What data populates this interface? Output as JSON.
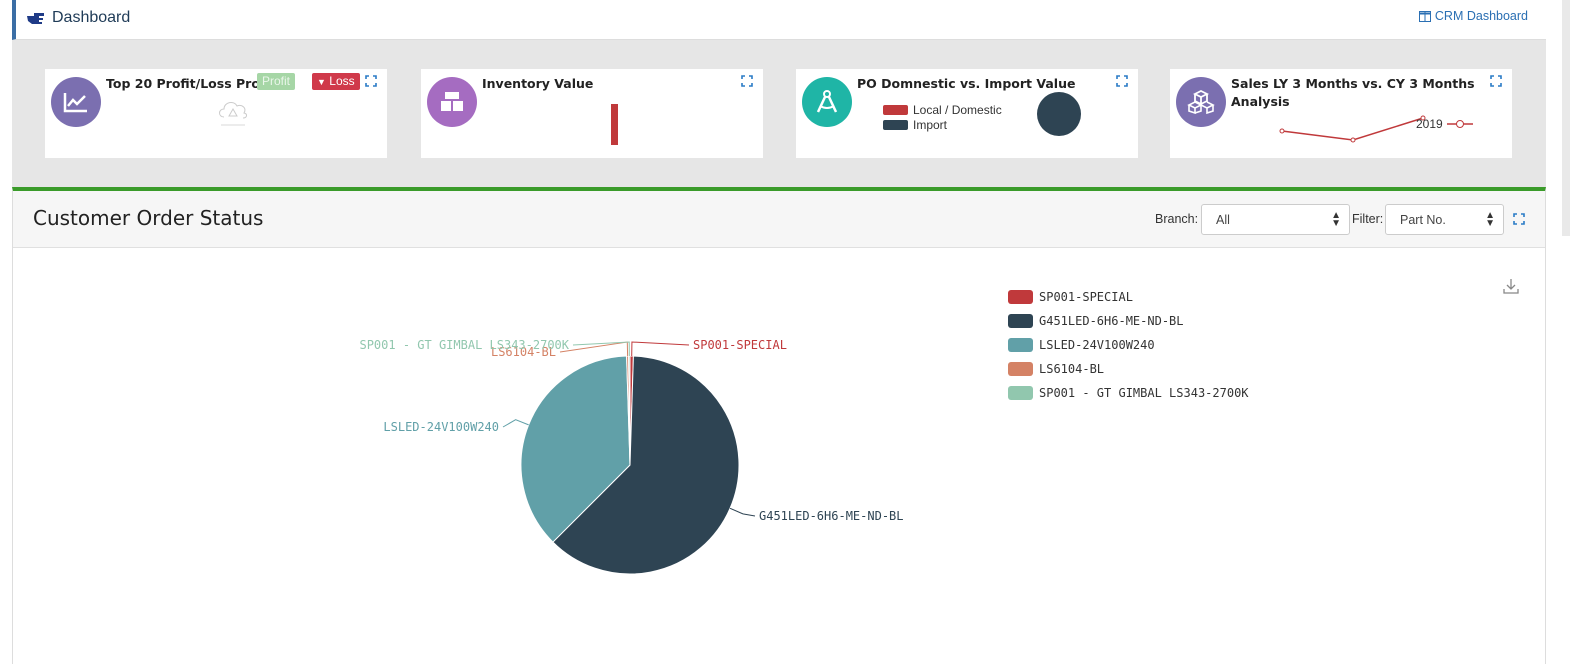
{
  "topbar": {
    "title": "Dashboard",
    "crm_link": "CRM Dashboard"
  },
  "cards": [
    {
      "title": "Top 20 Profit/Loss Product",
      "avatar_color": "#7b6fb0",
      "badges": {
        "profit": "Profit",
        "loss": "Loss"
      }
    },
    {
      "title": "Inventory Value",
      "avatar_color": "#a56cc1"
    },
    {
      "title": "PO Domnestic vs. Import Value",
      "avatar_color": "#1fb5a6",
      "legend": [
        "Local / Domestic",
        "Import"
      ]
    },
    {
      "title_line1": "Sales LY 3 Months vs. CY 3 Months",
      "title_line2": "Analysis",
      "avatar_color": "#7b6fb0",
      "legend": "2019"
    }
  ],
  "panel": {
    "title": "Customer Order Status",
    "branch_label": "Branch:",
    "branch_value": "All",
    "filter_label": "Filter:",
    "filter_value": "Part No."
  },
  "chart_data": {
    "type": "pie",
    "title": "",
    "series": [
      {
        "name": "SP001-SPECIAL",
        "value": 0.5,
        "color": "#c0393b"
      },
      {
        "name": "G451LED-6H6-ME-ND-BL",
        "value": 62,
        "color": "#2e4453"
      },
      {
        "name": "LSLED-24V100W240",
        "value": 37,
        "color": "#61a0a8"
      },
      {
        "name": "LS6104-BL",
        "value": 0.3,
        "color": "#d48265"
      },
      {
        "name": "SP001 - GT GIMBAL LS343-2700K",
        "value": 0.2,
        "color": "#91c7ae"
      }
    ],
    "legend_position": "top-right"
  }
}
